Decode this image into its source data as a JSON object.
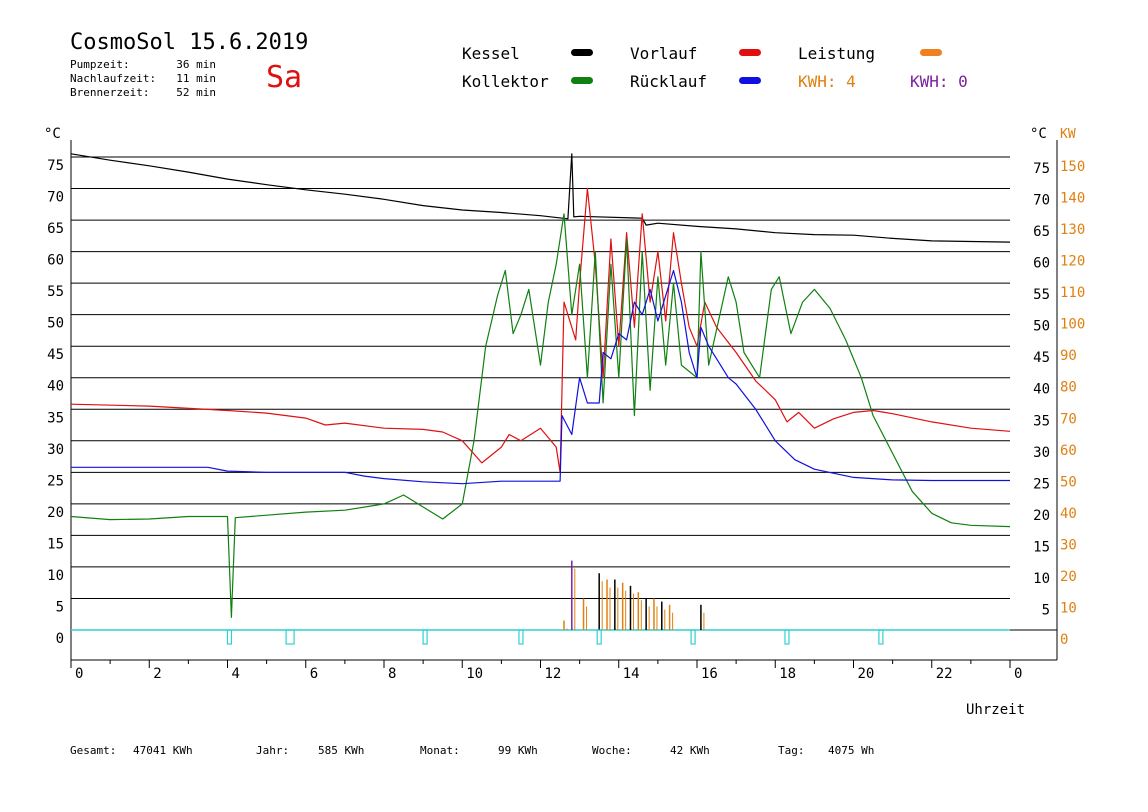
{
  "header": {
    "title": "CosmoSol 15.6.2019",
    "day": "Sa",
    "info": [
      {
        "label": "Pumpzeit:",
        "value": "36 min"
      },
      {
        "label": "Nachlaufzeit:",
        "value": "11 min"
      },
      {
        "label": "Brennerzeit:",
        "value": "52 min"
      }
    ]
  },
  "legend": [
    {
      "label": "Kessel",
      "color": "#000000"
    },
    {
      "label": "Vorlauf",
      "color": "#e01010"
    },
    {
      "label": "Leistung",
      "color": "#f08020"
    },
    {
      "label": "Kollektor",
      "color": "#108010"
    },
    {
      "label": "Rücklauf",
      "color": "#1010e0"
    },
    {
      "label": "KWH: 4",
      "color": "#e08010"
    },
    {
      "label": "KWH: 0",
      "color": "#8020a0"
    }
  ],
  "totals": [
    {
      "label": "Gesamt:",
      "value": "47041 KWh"
    },
    {
      "label": "Jahr:",
      "value": "585 KWh"
    },
    {
      "label": "Monat:",
      "value": "99 KWh"
    },
    {
      "label": "Woche:",
      "value": "42 KWh"
    },
    {
      "label": "Tag:",
      "value": "4075 Wh"
    }
  ],
  "chart_data": {
    "type": "line",
    "xlabel": "Uhrzeit",
    "ylabel_left": "°C",
    "ylabel_right_1": "°C",
    "ylabel_right_2": "KW",
    "xlim": [
      0,
      24
    ],
    "ylim": [
      0,
      75
    ],
    "ylim_kw": [
      0,
      150
    ],
    "x_ticks": [
      "0",
      "2",
      "4",
      "6",
      "8",
      "10",
      "12",
      "14",
      "16",
      "18",
      "20",
      "22",
      "0"
    ],
    "y_ticks_left": [
      "0",
      "5",
      "10",
      "15",
      "20",
      "25",
      "30",
      "35",
      "40",
      "45",
      "50",
      "55",
      "60",
      "65",
      "70",
      "75"
    ],
    "y_ticks_right": [
      "5",
      "10",
      "15",
      "20",
      "25",
      "30",
      "35",
      "40",
      "45",
      "50",
      "55",
      "60",
      "65",
      "70",
      "75"
    ],
    "kw_ticks": [
      "0",
      "10",
      "20",
      "30",
      "40",
      "50",
      "60",
      "70",
      "80",
      "90",
      "100",
      "110",
      "120",
      "130",
      "140",
      "150"
    ],
    "grid": "horizontal",
    "series": [
      {
        "name": "Kessel",
        "color": "#000000",
        "points": [
          [
            0,
            75.5
          ],
          [
            1,
            74.5
          ],
          [
            2,
            73.6
          ],
          [
            3,
            72.6
          ],
          [
            4,
            71.5
          ],
          [
            5,
            70.6
          ],
          [
            6,
            69.8
          ],
          [
            7,
            69.1
          ],
          [
            8,
            68.3
          ],
          [
            9,
            67.3
          ],
          [
            10,
            66.6
          ],
          [
            11,
            66.2
          ],
          [
            12,
            65.7
          ],
          [
            12.7,
            65.2
          ],
          [
            12.8,
            75.5
          ],
          [
            12.85,
            65.5
          ],
          [
            13,
            65.6
          ],
          [
            14.6,
            65.3
          ],
          [
            14.7,
            64.2
          ],
          [
            15,
            64.5
          ],
          [
            16,
            64
          ],
          [
            17,
            63.6
          ],
          [
            18,
            63
          ],
          [
            19,
            62.7
          ],
          [
            20,
            62.6
          ],
          [
            21,
            62.1
          ],
          [
            22,
            61.7
          ],
          [
            23,
            61.6
          ],
          [
            24,
            61.5
          ]
        ]
      },
      {
        "name": "Vorlauf",
        "color": "#e01010",
        "points": [
          [
            0,
            35.8
          ],
          [
            2,
            35.5
          ],
          [
            4,
            34.8
          ],
          [
            5,
            34.4
          ],
          [
            6,
            33.6
          ],
          [
            6.5,
            32.5
          ],
          [
            7,
            32.8
          ],
          [
            8,
            32
          ],
          [
            9,
            31.8
          ],
          [
            9.5,
            31.4
          ],
          [
            10,
            30
          ],
          [
            10.5,
            26.5
          ],
          [
            11,
            29
          ],
          [
            11.2,
            31
          ],
          [
            11.5,
            30
          ],
          [
            12,
            32
          ],
          [
            12.4,
            29
          ],
          [
            12.5,
            25
          ],
          [
            12.6,
            52
          ],
          [
            12.9,
            46
          ],
          [
            13,
            55
          ],
          [
            13.2,
            70
          ],
          [
            13.4,
            58
          ],
          [
            13.6,
            40
          ],
          [
            13.8,
            62
          ],
          [
            14,
            45
          ],
          [
            14.2,
            63
          ],
          [
            14.4,
            48
          ],
          [
            14.6,
            66
          ],
          [
            14.8,
            52
          ],
          [
            15,
            60
          ],
          [
            15.2,
            49
          ],
          [
            15.4,
            63
          ],
          [
            15.6,
            55
          ],
          [
            15.8,
            48
          ],
          [
            16,
            45
          ],
          [
            16.2,
            52
          ],
          [
            16.5,
            48
          ],
          [
            17,
            44
          ],
          [
            17.5,
            39.5
          ],
          [
            18,
            36.5
          ],
          [
            18.3,
            33
          ],
          [
            18.6,
            34.5
          ],
          [
            19,
            32
          ],
          [
            19.5,
            33.5
          ],
          [
            20,
            34.5
          ],
          [
            20.5,
            34.8
          ],
          [
            21,
            34.3
          ],
          [
            22,
            33
          ],
          [
            23,
            32
          ],
          [
            24,
            31.5
          ]
        ]
      },
      {
        "name": "Kollektor",
        "color": "#108010",
        "points": [
          [
            0,
            18
          ],
          [
            1,
            17.5
          ],
          [
            2,
            17.6
          ],
          [
            3,
            18
          ],
          [
            4,
            18
          ],
          [
            4.1,
            2
          ],
          [
            4.2,
            17.8
          ],
          [
            5,
            18.2
          ],
          [
            6,
            18.7
          ],
          [
            7,
            19
          ],
          [
            8,
            20
          ],
          [
            8.5,
            21.4
          ],
          [
            9,
            19.5
          ],
          [
            9.5,
            17.6
          ],
          [
            10,
            20
          ],
          [
            10.3,
            30
          ],
          [
            10.6,
            45
          ],
          [
            10.9,
            53
          ],
          [
            11.1,
            57
          ],
          [
            11.3,
            47
          ],
          [
            11.5,
            50
          ],
          [
            11.7,
            54
          ],
          [
            12,
            42
          ],
          [
            12.2,
            52
          ],
          [
            12.4,
            58
          ],
          [
            12.6,
            66
          ],
          [
            12.8,
            50
          ],
          [
            13,
            58
          ],
          [
            13.2,
            40
          ],
          [
            13.4,
            60
          ],
          [
            13.6,
            36
          ],
          [
            13.8,
            58
          ],
          [
            14,
            40
          ],
          [
            14.2,
            62
          ],
          [
            14.4,
            34
          ],
          [
            14.6,
            60
          ],
          [
            14.8,
            38
          ],
          [
            15,
            56
          ],
          [
            15.2,
            42
          ],
          [
            15.4,
            55
          ],
          [
            15.6,
            42
          ],
          [
            16,
            40
          ],
          [
            16.1,
            60
          ],
          [
            16.3,
            42
          ],
          [
            16.8,
            56
          ],
          [
            17,
            52
          ],
          [
            17.2,
            44
          ],
          [
            17.6,
            40
          ],
          [
            17.9,
            54
          ],
          [
            18.1,
            56
          ],
          [
            18.4,
            47
          ],
          [
            18.7,
            52
          ],
          [
            19,
            54
          ],
          [
            19.4,
            51
          ],
          [
            19.8,
            46
          ],
          [
            20.2,
            40
          ],
          [
            20.5,
            34
          ],
          [
            21,
            28
          ],
          [
            21.5,
            22
          ],
          [
            22,
            18.5
          ],
          [
            22.5,
            17
          ],
          [
            23,
            16.6
          ],
          [
            24,
            16.4
          ]
        ]
      },
      {
        "name": "Rücklauf",
        "color": "#1010e0",
        "points": [
          [
            0,
            25.8
          ],
          [
            3,
            25.8
          ],
          [
            3.5,
            25.8
          ],
          [
            4,
            25.2
          ],
          [
            5,
            25
          ],
          [
            6,
            25
          ],
          [
            7,
            25
          ],
          [
            7.5,
            24.4
          ],
          [
            8,
            24
          ],
          [
            9,
            23.5
          ],
          [
            10,
            23.2
          ],
          [
            11,
            23.6
          ],
          [
            12,
            23.6
          ],
          [
            12.5,
            23.6
          ],
          [
            12.55,
            34
          ],
          [
            12.8,
            31
          ],
          [
            13,
            40
          ],
          [
            13.2,
            36
          ],
          [
            13.5,
            36
          ],
          [
            13.6,
            44
          ],
          [
            13.8,
            43
          ],
          [
            14,
            47
          ],
          [
            14.2,
            46
          ],
          [
            14.4,
            52
          ],
          [
            14.6,
            50
          ],
          [
            14.8,
            54
          ],
          [
            15,
            49
          ],
          [
            15.2,
            53
          ],
          [
            15.4,
            57
          ],
          [
            15.6,
            52
          ],
          [
            15.8,
            44
          ],
          [
            16,
            40
          ],
          [
            16.1,
            48
          ],
          [
            16.3,
            45
          ],
          [
            16.5,
            43
          ],
          [
            16.8,
            40
          ],
          [
            17,
            39
          ],
          [
            17.5,
            35
          ],
          [
            18,
            30
          ],
          [
            18.5,
            27
          ],
          [
            19,
            25.5
          ],
          [
            20,
            24.2
          ],
          [
            21,
            23.8
          ],
          [
            22,
            23.7
          ],
          [
            23,
            23.7
          ],
          [
            24,
            23.7
          ]
        ]
      }
    ],
    "leistung_bars_kw": [
      [
        12.6,
        3
      ],
      [
        12.8,
        22
      ],
      [
        13.1,
        10
      ],
      [
        13.5,
        18
      ],
      [
        13.7,
        16
      ],
      [
        13.9,
        16
      ],
      [
        14.1,
        15
      ],
      [
        14.3,
        14
      ],
      [
        14.5,
        12
      ],
      [
        14.7,
        10
      ],
      [
        14.9,
        10
      ],
      [
        15.1,
        9
      ],
      [
        15.3,
        8
      ],
      [
        16.1,
        8
      ]
    ],
    "pump_markers_x": [
      4.05,
      5.6,
      9.05,
      11.5,
      13.5,
      15.9,
      18.3,
      20.7
    ]
  }
}
